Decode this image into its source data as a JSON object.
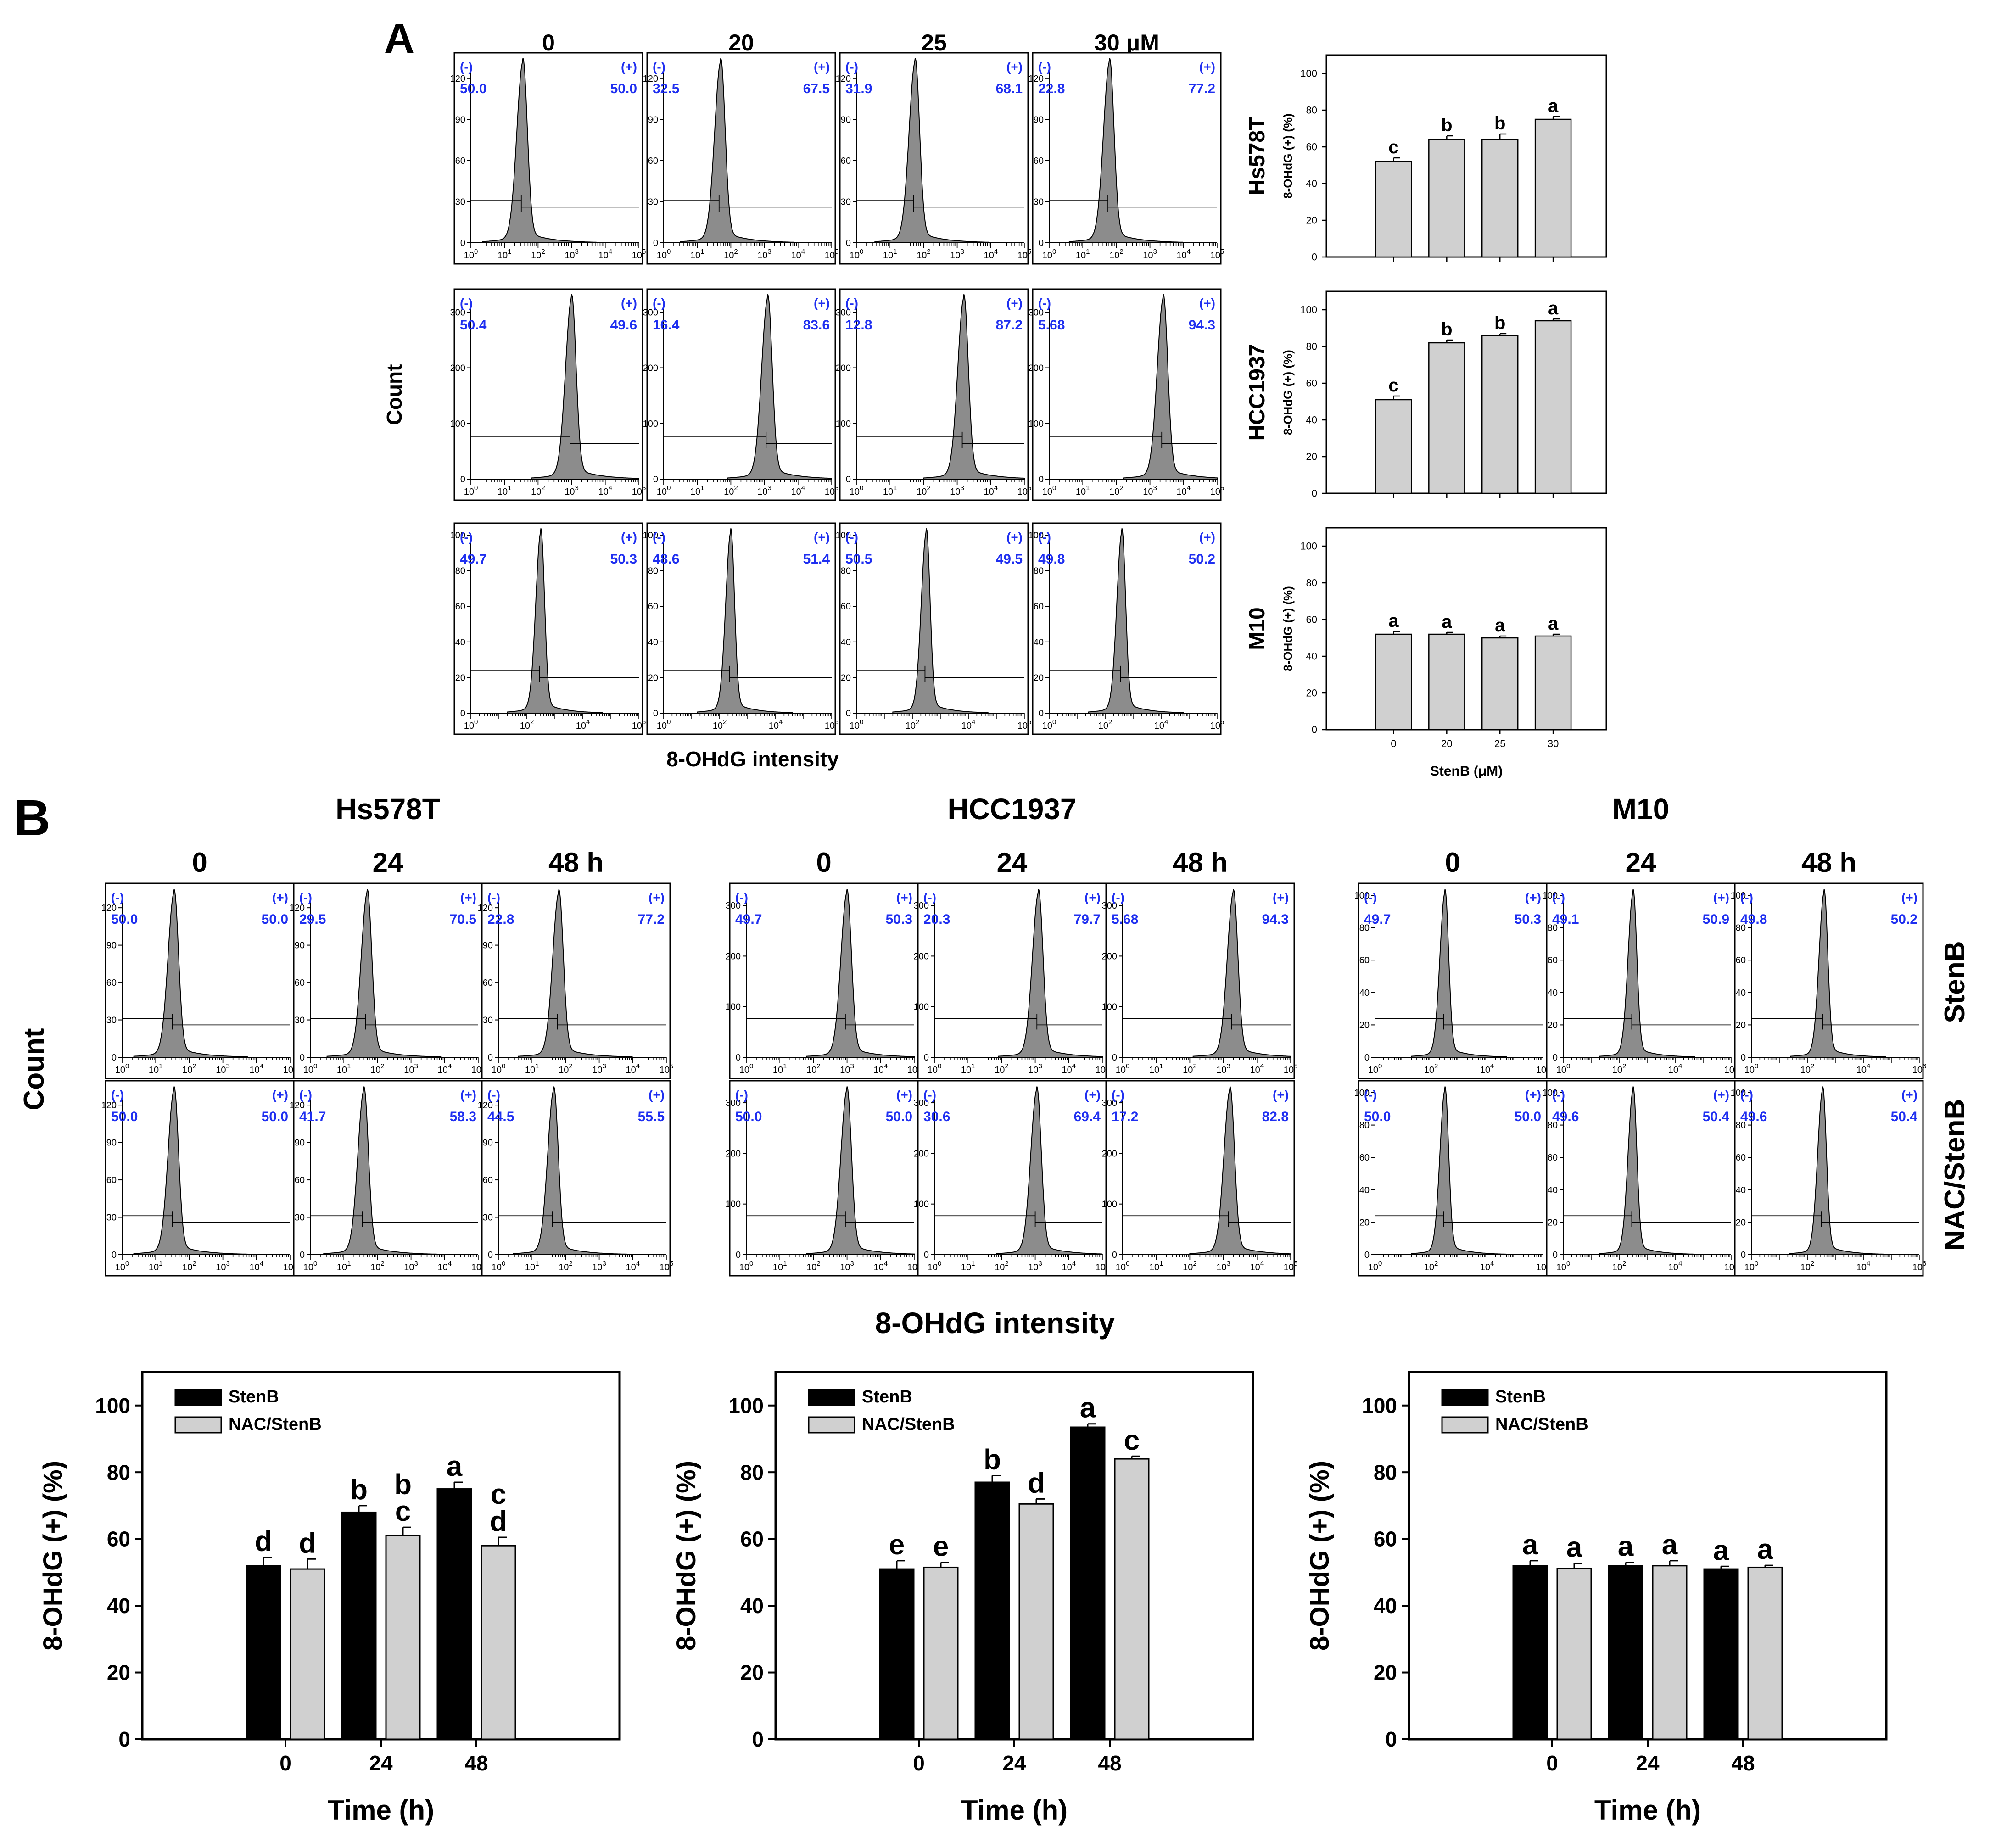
{
  "colors": {
    "blue": "#1f2ff0",
    "hist": "#8c8c8c",
    "bar_gray": "#d0d0d0",
    "bar_black": "#000000"
  },
  "panel_a": {
    "label": "A",
    "conc_headers": [
      "0",
      "20",
      "25",
      "30 μM"
    ],
    "y_label": "Count",
    "x_label": "8-OHdG intensity",
    "rows": [
      {
        "cell": "Hs578T",
        "yticks": [
          "0",
          "30",
          "60",
          "90",
          "120"
        ],
        "xticks": [
          "0",
          "1",
          "2",
          "3",
          "4",
          "5"
        ],
        "ymax": 130,
        "hists": [
          {
            "neg": "50.0",
            "pos": "50.0",
            "peak": 1.55
          },
          {
            "neg": "32.5",
            "pos": "67.5",
            "peak": 1.7
          },
          {
            "neg": "31.9",
            "pos": "68.1",
            "peak": 1.75
          },
          {
            "neg": "22.8",
            "pos": "77.2",
            "peak": 1.8
          }
        ]
      },
      {
        "cell": "HCC1937",
        "yticks": [
          "0",
          "100",
          "200",
          "300"
        ],
        "xticks": [
          "0",
          "1",
          "2",
          "3",
          "4",
          "5"
        ],
        "ymax": 320,
        "hists": [
          {
            "neg": "50.4",
            "pos": "49.6",
            "peak": 3.0
          },
          {
            "neg": "16.4",
            "pos": "83.6",
            "peak": 3.1
          },
          {
            "neg": "12.8",
            "pos": "87.2",
            "peak": 3.2
          },
          {
            "neg": "5.68",
            "pos": "94.3",
            "peak": 3.4
          }
        ]
      },
      {
        "cell": "M10",
        "yticks": [
          "0",
          "20",
          "40",
          "60",
          "80",
          "100"
        ],
        "xticks": [
          "0",
          "2",
          "4",
          "6"
        ],
        "ymax": 100,
        "hists": [
          {
            "neg": "49.7",
            "pos": "50.3",
            "peak": 2.5
          },
          {
            "neg": "48.6",
            "pos": "51.4",
            "peak": 2.4
          },
          {
            "neg": "50.5",
            "pos": "49.5",
            "peak": 2.5
          },
          {
            "neg": "49.8",
            "pos": "50.2",
            "peak": 2.6
          }
        ]
      }
    ],
    "bar_charts": [
      {
        "cell": "Hs578T",
        "values": [
          52,
          64,
          64,
          75
        ],
        "errors": [
          2,
          2,
          3,
          1.5
        ],
        "letters": [
          "c",
          "b",
          "b",
          "a"
        ]
      },
      {
        "cell": "HCC1937",
        "values": [
          51,
          82,
          86,
          94
        ],
        "errors": [
          2,
          1.5,
          1,
          1
        ],
        "letters": [
          "c",
          "b",
          "b",
          "a"
        ]
      },
      {
        "cell": "M10",
        "values": [
          52,
          52,
          50,
          51
        ],
        "errors": [
          1.5,
          1,
          1,
          1
        ],
        "letters": [
          "a",
          "a",
          "a",
          "a"
        ]
      }
    ],
    "bar_categories": [
      "0",
      "20",
      "25",
      "30"
    ],
    "bar_yticks": [
      "0",
      "20",
      "40",
      "60",
      "80",
      "100"
    ],
    "bar_ylabel": "8-OHdG (+) (%)",
    "bar_xlabel": "StenB (μM)"
  },
  "panel_b": {
    "label": "B",
    "time_headers": [
      "0",
      "24",
      "48 h"
    ],
    "y_label": "Count",
    "x_label": "8-OHdG intensity",
    "row_labels": [
      "StenB",
      "NAC/StenB"
    ],
    "groups": [
      {
        "cell": "Hs578T",
        "yticks": [
          "0",
          "30",
          "60",
          "90",
          "120"
        ],
        "xticks": [
          "0",
          "1",
          "2",
          "3",
          "4",
          "5"
        ],
        "ymax": 130,
        "stenb": [
          {
            "neg": "50.0",
            "pos": "50.0",
            "peak": 1.55
          },
          {
            "neg": "29.5",
            "pos": "70.5",
            "peak": 1.7
          },
          {
            "neg": "22.8",
            "pos": "77.2",
            "peak": 1.8
          }
        ],
        "nac": [
          {
            "neg": "50.0",
            "pos": "50.0",
            "peak": 1.55
          },
          {
            "neg": "41.7",
            "pos": "58.3",
            "peak": 1.6
          },
          {
            "neg": "44.5",
            "pos": "55.5",
            "peak": 1.65
          }
        ]
      },
      {
        "cell": "HCC1937",
        "yticks": [
          "0",
          "100",
          "200",
          "300"
        ],
        "xticks": [
          "0",
          "1",
          "2",
          "3",
          "4",
          "5"
        ],
        "ymax": 320,
        "stenb": [
          {
            "neg": "49.7",
            "pos": "50.3",
            "peak": 3.0
          },
          {
            "neg": "20.3",
            "pos": "79.7",
            "peak": 3.1
          },
          {
            "neg": "5.68",
            "pos": "94.3",
            "peak": 3.3
          }
        ],
        "nac": [
          {
            "neg": "50.0",
            "pos": "50.0",
            "peak": 3.0
          },
          {
            "neg": "30.6",
            "pos": "69.4",
            "peak": 3.05
          },
          {
            "neg": "17.2",
            "pos": "82.8",
            "peak": 3.2
          }
        ]
      },
      {
        "cell": "M10",
        "yticks": [
          "0",
          "20",
          "40",
          "60",
          "80",
          "100"
        ],
        "xticks": [
          "0",
          "2",
          "4",
          "6"
        ],
        "ymax": 100,
        "stenb": [
          {
            "neg": "49.7",
            "pos": "50.3",
            "peak": 2.5
          },
          {
            "neg": "49.1",
            "pos": "50.9",
            "peak": 2.5
          },
          {
            "neg": "49.8",
            "pos": "50.2",
            "peak": 2.6
          }
        ],
        "nac": [
          {
            "neg": "50.0",
            "pos": "50.0",
            "peak": 2.5
          },
          {
            "neg": "49.6",
            "pos": "50.4",
            "peak": 2.5
          },
          {
            "neg": "49.6",
            "pos": "50.4",
            "peak": 2.55
          }
        ]
      }
    ],
    "bar_ylabel": "8-OHdG (+) (%)",
    "bar_xlabel": "Time (h)",
    "bar_categories": [
      "0",
      "24",
      "48"
    ],
    "bar_yticks": [
      "0",
      "20",
      "40",
      "60",
      "80",
      "100"
    ],
    "legend": [
      "StenB",
      "NAC/StenB"
    ]
  },
  "chart_data": [
    {
      "type": "bar",
      "panel": "A",
      "title": "Hs578T",
      "categories": [
        "0",
        "20",
        "25",
        "30"
      ],
      "xlabel": "StenB (μM)",
      "ylabel": "8-OHdG (+) (%)",
      "ylim": [
        0,
        110
      ],
      "series": [
        {
          "values": [
            52,
            64,
            64,
            75
          ],
          "errors": [
            2,
            2,
            3,
            1.5
          ],
          "letters": [
            "c",
            "b",
            "b",
            "a"
          ]
        }
      ]
    },
    {
      "type": "bar",
      "panel": "A",
      "title": "HCC1937",
      "categories": [
        "0",
        "20",
        "25",
        "30"
      ],
      "xlabel": "StenB (μM)",
      "ylabel": "8-OHdG (+) (%)",
      "ylim": [
        0,
        110
      ],
      "series": [
        {
          "values": [
            51,
            82,
            86,
            94
          ],
          "errors": [
            2,
            1.5,
            1,
            1
          ],
          "letters": [
            "c",
            "b",
            "b",
            "a"
          ]
        }
      ]
    },
    {
      "type": "bar",
      "panel": "A",
      "title": "M10",
      "categories": [
        "0",
        "20",
        "25",
        "30"
      ],
      "xlabel": "StenB (μM)",
      "ylabel": "8-OHdG (+) (%)",
      "ylim": [
        0,
        110
      ],
      "series": [
        {
          "values": [
            52,
            52,
            50,
            51
          ],
          "errors": [
            1.5,
            1,
            1,
            1
          ],
          "letters": [
            "a",
            "a",
            "a",
            "a"
          ]
        }
      ]
    },
    {
      "type": "bar",
      "panel": "B",
      "title": "Hs578T",
      "categories": [
        "0",
        "24",
        "48"
      ],
      "xlabel": "Time (h)",
      "ylabel": "8-OHdG (+) (%)",
      "ylim": [
        0,
        110
      ],
      "legend": "top-left",
      "series": [
        {
          "name": "StenB",
          "values": [
            52,
            68,
            75
          ],
          "errors": [
            2.5,
            2,
            2
          ],
          "letters": [
            "d",
            "b",
            "a"
          ]
        },
        {
          "name": "NAC/StenB",
          "values": [
            51,
            61,
            58
          ],
          "errors": [
            3,
            2.5,
            2.5
          ],
          "letters": [
            "d",
            "b\nc",
            "c\nd"
          ]
        }
      ]
    },
    {
      "type": "bar",
      "panel": "B",
      "title": "HCC1937",
      "categories": [
        "0",
        "24",
        "48"
      ],
      "xlabel": "Time (h)",
      "ylabel": "8-OHdG (+) (%)",
      "ylim": [
        0,
        110
      ],
      "legend": "top-left",
      "series": [
        {
          "name": "StenB",
          "values": [
            51,
            77,
            93.5
          ],
          "errors": [
            2.5,
            2,
            1
          ],
          "letters": [
            "e",
            "b",
            "a"
          ]
        },
        {
          "name": "NAC/StenB",
          "values": [
            51.5,
            70.5,
            84
          ],
          "errors": [
            1.5,
            1.5,
            0.8
          ],
          "letters": [
            "e",
            "d",
            "c"
          ]
        }
      ]
    },
    {
      "type": "bar",
      "panel": "B",
      "title": "M10",
      "categories": [
        "0",
        "24",
        "48"
      ],
      "xlabel": "Time (h)",
      "ylabel": "8-OHdG (+) (%)",
      "ylim": [
        0,
        110
      ],
      "legend": "top-left",
      "series": [
        {
          "name": "StenB",
          "values": [
            52,
            52,
            51
          ],
          "errors": [
            1.5,
            1,
            0.8
          ],
          "letters": [
            "a",
            "a",
            "a"
          ]
        },
        {
          "name": "NAC/StenB",
          "values": [
            51.2,
            52,
            51.5
          ],
          "errors": [
            1.5,
            1.5,
            0.6
          ],
          "letters": [
            "a",
            "a",
            "a"
          ]
        }
      ]
    }
  ]
}
